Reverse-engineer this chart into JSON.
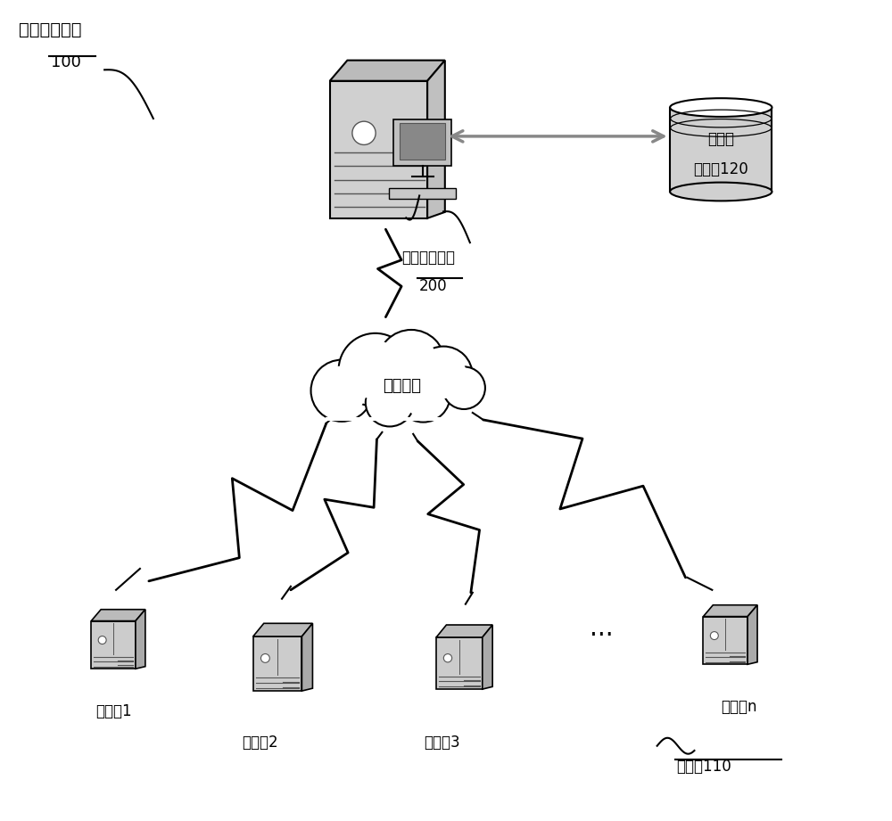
{
  "title_text": "负载均衡系统",
  "label_100": "100",
  "label_200_line1": "负载均衡设备",
  "label_200_line2": "200",
  "label_storage_line1": "数据存",
  "label_storage_line2": "储装置120",
  "label_network": "数据网络",
  "label_server1": "服务器1",
  "label_server2": "服务器2",
  "label_server3": "服务器3",
  "label_servern": "服务器n",
  "label_110_line1": "服务器110",
  "bg_color": "#ffffff",
  "line_color": "#000000",
  "dark_gray": "#555555",
  "mid_gray": "#aaaaaa",
  "light_gray": "#dddddd",
  "arrow_gray": "#888888",
  "tower_fill": "#cccccc",
  "tower_top": "#bbbbbb",
  "tower_side": "#999999"
}
